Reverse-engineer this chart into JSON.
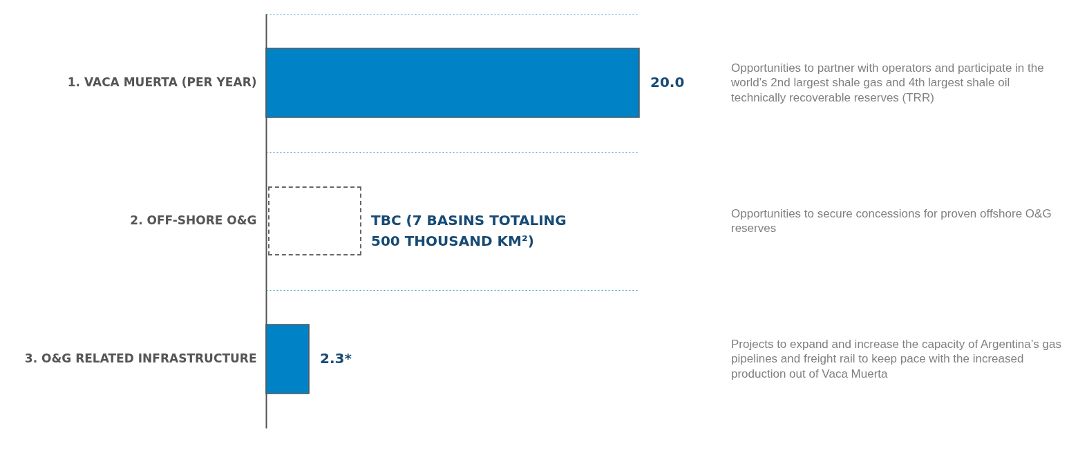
{
  "chart_data": {
    "type": "bar",
    "orientation": "horizontal",
    "categories": [
      "1. VACA MUERTA (PER YEAR)",
      "2. OFF-SHORE O&G",
      "3. O&G RELATED INFRASTRUCTURE"
    ],
    "values": [
      20.0,
      null,
      2.3
    ],
    "value_labels": [
      "20.0",
      "TBC (7 BASINS TOTALING 500 THOUSAND KM²)",
      "2.3*"
    ],
    "color": "#0083c6",
    "grid": "y",
    "annotations": [
      "Opportunities to partner with operators and participate in the world’s 2nd largest shale gas and 4th largest shale oil technically recoverable reserves (TRR)",
      "Opportunities to secure concessions for proven offshore O&G reserves",
      "Projects to expand and increase the capacity of Argentina’s gas pipelines and freight rail to keep pace with the increased production out of Vaca Muerta"
    ]
  }
}
